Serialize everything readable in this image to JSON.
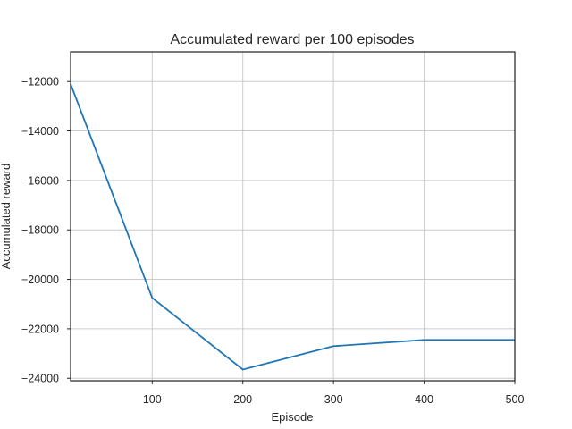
{
  "chart_data": {
    "type": "line",
    "title": "Accumulated reward per 100 episodes",
    "xlabel": "Episode",
    "ylabel": "Accumulated reward",
    "xlim": [
      10,
      500
    ],
    "ylim": [
      -24100,
      -10800
    ],
    "xticks": [
      100,
      200,
      300,
      400,
      500
    ],
    "yticks": [
      -24000,
      -22000,
      -20000,
      -18000,
      -16000,
      -14000,
      -12000
    ],
    "xtick_labels": [
      "100",
      "200",
      "300",
      "400",
      "500"
    ],
    "ytick_labels": [
      "−24000",
      "−22000",
      "−20000",
      "−18000",
      "−16000",
      "−14000",
      "−12000"
    ],
    "grid": true,
    "series": [
      {
        "x": [
          10,
          100,
          200,
          300,
          400,
          500
        ],
        "y": [
          -12100,
          -20750,
          -23650,
          -22700,
          -22450,
          -22450
        ],
        "color": "#1f77b4"
      }
    ]
  }
}
